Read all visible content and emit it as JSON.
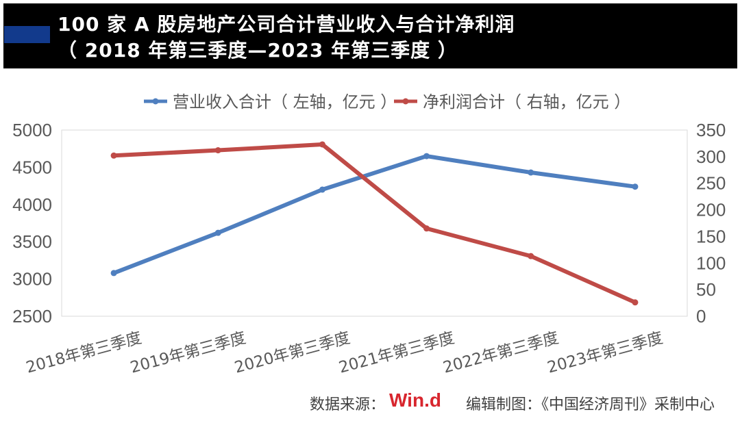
{
  "header": {
    "title_line1": "100 家 A 股房地产公司合计营业收入与合计净利润",
    "title_line2": "（ 2018 年第三季度—2023 年第三季度 ）"
  },
  "footer": {
    "source_label": "数据来源：",
    "source_logo": "Win.d",
    "credit": "编辑制图：《中国经济周刊》采制中心"
  },
  "chart_data": {
    "type": "line",
    "categories": [
      "2018年第三季度",
      "2019年第三季度",
      "2020年第三季度",
      "2021年第三季度",
      "2022年第三季度",
      "2023年第三季度"
    ],
    "series": [
      {
        "name": "营业收入合计（ 左轴，亿元 ）",
        "axis": "left",
        "color": "#4f7fbf",
        "values": [
          3080,
          3620,
          4200,
          4650,
          4430,
          4240
        ]
      },
      {
        "name": "净利润合计（ 右轴，亿元 ）",
        "axis": "right",
        "color": "#bf4b47",
        "values": [
          302,
          312,
          323,
          165,
          113,
          26
        ]
      }
    ],
    "y_left": {
      "min": 2500,
      "max": 5000,
      "ticks": [
        "5000",
        "4500",
        "4000",
        "3500",
        "3000",
        "2500"
      ],
      "tick_values": [
        5000,
        4500,
        4000,
        3500,
        3000,
        2500
      ]
    },
    "y_right": {
      "min": 0,
      "max": 350,
      "ticks": [
        "350",
        "300",
        "250",
        "200",
        "150",
        "100",
        "50",
        "0"
      ],
      "tick_values": [
        350,
        300,
        250,
        200,
        150,
        100,
        50,
        0
      ]
    },
    "grid": false,
    "legend": "top-center",
    "markers": true
  }
}
